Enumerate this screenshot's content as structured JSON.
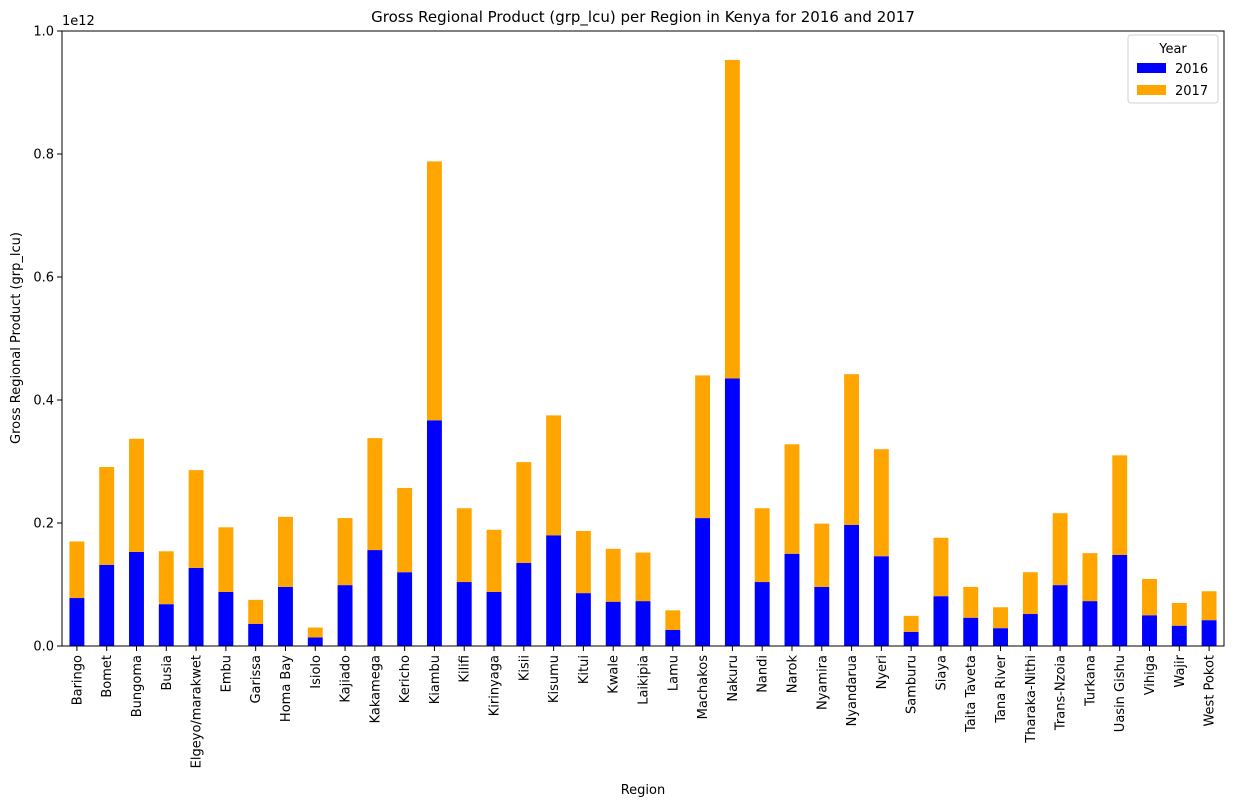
{
  "chart_data": {
    "type": "bar",
    "stacked": true,
    "title": "Gross Regional Product (grp_lcu) per Region in Kenya for 2016 and 2017",
    "xlabel": "Region",
    "ylabel": "Gross Regional Product (grp_lcu)",
    "y_offset_label": "1e12",
    "ylim": [
      0,
      1.0
    ],
    "yticks": [
      "0.0",
      "0.2",
      "0.4",
      "0.6",
      "0.8",
      "1.0"
    ],
    "grid": false,
    "legend": {
      "title": "Year",
      "placement": "top-right"
    },
    "categories": [
      "Baringo",
      "Bomet",
      "Bungoma",
      "Busia",
      "Elgeyo/marakwet",
      "Embu",
      "Garissa",
      "Homa Bay",
      "Isiolo",
      "Kajiado",
      "Kakamega",
      "Kericho",
      "Kiambu",
      "Kilifi",
      "Kirinyaga",
      "Kisii",
      "Kisumu",
      "Kitui",
      "Kwale",
      "Laikipia",
      "Lamu",
      "Machakos",
      "Nakuru",
      "Nandi",
      "Narok",
      "Nyamira",
      "Nyandarua",
      "Nyeri",
      "Samburu",
      "Siaya",
      "Taita Taveta",
      "Tana River",
      "Tharaka-Nithi",
      "Trans-Nzoia",
      "Turkana",
      "Uasin Gishu",
      "Vihiga",
      "Wajir",
      "West  Pokot"
    ],
    "series": [
      {
        "name": "2016",
        "color": "#0000ff",
        "values": [
          0.078,
          0.132,
          0.153,
          0.068,
          0.127,
          0.088,
          0.036,
          0.096,
          0.014,
          0.099,
          0.156,
          0.12,
          0.367,
          0.104,
          0.088,
          0.135,
          0.18,
          0.086,
          0.072,
          0.073,
          0.026,
          0.208,
          0.435,
          0.104,
          0.15,
          0.096,
          0.197,
          0.146,
          0.023,
          0.081,
          0.046,
          0.029,
          0.052,
          0.099,
          0.073,
          0.148,
          0.05,
          0.033,
          0.042
        ]
      },
      {
        "name": "2017",
        "color": "#ffa500",
        "values": [
          0.092,
          0.159,
          0.184,
          0.086,
          0.159,
          0.105,
          0.039,
          0.114,
          0.016,
          0.109,
          0.182,
          0.137,
          0.421,
          0.12,
          0.101,
          0.164,
          0.195,
          0.101,
          0.086,
          0.079,
          0.032,
          0.232,
          0.518,
          0.12,
          0.178,
          0.103,
          0.245,
          0.174,
          0.026,
          0.095,
          0.05,
          0.034,
          0.068,
          0.117,
          0.078,
          0.162,
          0.059,
          0.037,
          0.047
        ]
      }
    ]
  }
}
